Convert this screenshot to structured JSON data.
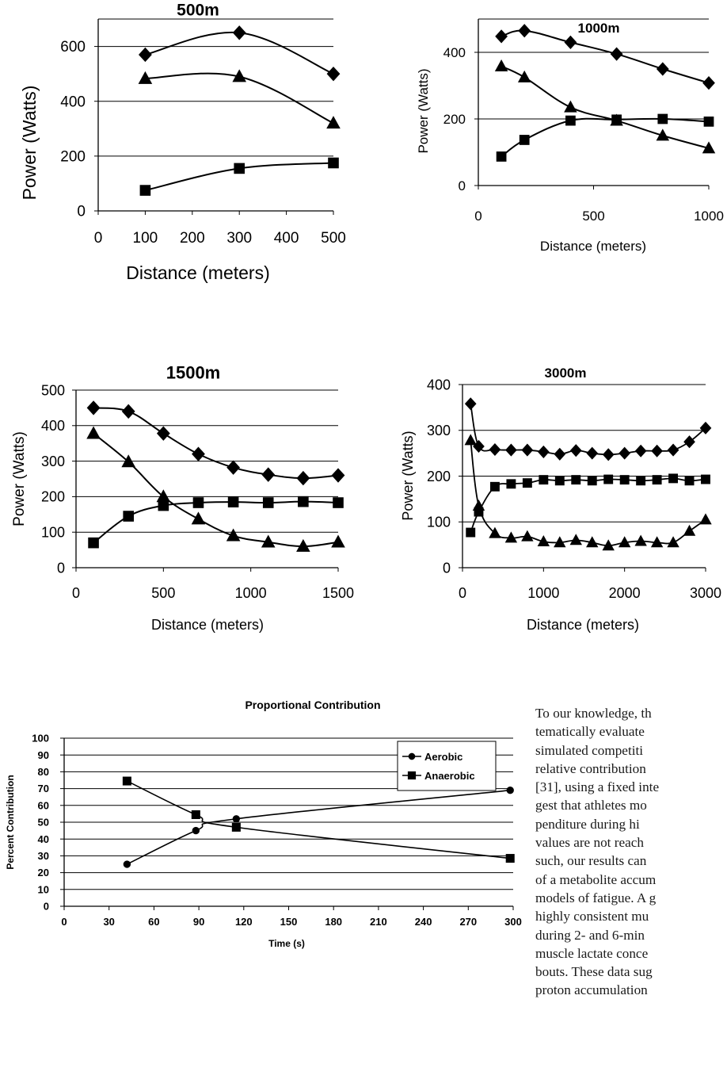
{
  "chart_data": [
    {
      "type": "line",
      "title": "500m",
      "xlabel": "Distance (meters)",
      "ylabel": "Power (Watts)",
      "xlim": [
        0,
        500
      ],
      "ylim": [
        0,
        700
      ],
      "xticks": [
        0,
        100,
        200,
        300,
        400,
        500
      ],
      "yticks": [
        0,
        200,
        400,
        600
      ],
      "grid": "horizontal",
      "series": [
        {
          "marker": "diamond",
          "x": [
            100,
            300,
            500
          ],
          "values": [
            570,
            650,
            500
          ]
        },
        {
          "marker": "triangle",
          "x": [
            100,
            300,
            500
          ],
          "values": [
            483,
            490,
            320
          ]
        },
        {
          "marker": "square",
          "x": [
            100,
            300,
            500
          ],
          "values": [
            75,
            155,
            175
          ]
        }
      ]
    },
    {
      "type": "line",
      "title": "1000m",
      "xlabel": "Distance (meters)",
      "ylabel": "Power (Watts)",
      "xlim": [
        0,
        1000
      ],
      "ylim": [
        0,
        500
      ],
      "xticks": [
        0,
        500,
        1000
      ],
      "yticks": [
        0,
        200,
        400
      ],
      "grid": "horizontal",
      "series": [
        {
          "marker": "diamond",
          "x": [
            100,
            200,
            400,
            600,
            800,
            1000
          ],
          "values": [
            448,
            465,
            430,
            395,
            350,
            308
          ]
        },
        {
          "marker": "triangle",
          "x": [
            100,
            200,
            400,
            600,
            800,
            1000
          ],
          "values": [
            358,
            325,
            235,
            195,
            150,
            112
          ]
        },
        {
          "marker": "square",
          "x": [
            100,
            200,
            400,
            600,
            800,
            1000
          ],
          "values": [
            87,
            137,
            195,
            198,
            200,
            192
          ]
        }
      ]
    },
    {
      "type": "line",
      "title": "1500m",
      "xlabel": "Distance (meters)",
      "ylabel": "Power (Watts)",
      "xlim": [
        0,
        1500
      ],
      "ylim": [
        0,
        500
      ],
      "xticks": [
        0,
        500,
        1000,
        1500
      ],
      "yticks": [
        0,
        100,
        200,
        300,
        400,
        500
      ],
      "grid": "horizontal",
      "series": [
        {
          "marker": "diamond",
          "x": [
            100,
            300,
            500,
            700,
            900,
            1100,
            1300,
            1500
          ],
          "values": [
            450,
            440,
            378,
            320,
            282,
            262,
            252,
            260
          ]
        },
        {
          "marker": "triangle",
          "x": [
            100,
            300,
            500,
            700,
            900,
            1100,
            1300,
            1500
          ],
          "values": [
            378,
            298,
            200,
            137,
            90,
            72,
            60,
            72
          ]
        },
        {
          "marker": "square",
          "x": [
            100,
            300,
            500,
            700,
            900,
            1100,
            1300,
            1500
          ],
          "values": [
            70,
            145,
            175,
            183,
            185,
            183,
            186,
            183
          ]
        }
      ]
    },
    {
      "type": "line",
      "title": "3000m",
      "xlabel": "Distance (meters)",
      "ylabel": "Power (Watts)",
      "xlim": [
        0,
        3000
      ],
      "ylim": [
        0,
        400
      ],
      "xticks": [
        0,
        1000,
        2000,
        3000
      ],
      "yticks": [
        0,
        100,
        200,
        300,
        400
      ],
      "grid": "horizontal",
      "series": [
        {
          "marker": "diamond",
          "x": [
            100,
            200,
            400,
            600,
            800,
            1000,
            1200,
            1400,
            1600,
            1800,
            2000,
            2200,
            2400,
            2600,
            2800,
            3000
          ],
          "values": [
            358,
            265,
            258,
            257,
            257,
            253,
            248,
            256,
            250,
            247,
            250,
            255,
            255,
            257,
            275,
            305
          ]
        },
        {
          "marker": "triangle",
          "x": [
            100,
            200,
            400,
            600,
            800,
            1000,
            1200,
            1400,
            1600,
            1800,
            2000,
            2200,
            2400,
            2600,
            2800,
            3000
          ],
          "values": [
            278,
            135,
            75,
            65,
            68,
            57,
            55,
            60,
            55,
            48,
            55,
            58,
            55,
            55,
            80,
            105
          ]
        },
        {
          "marker": "square",
          "x": [
            100,
            200,
            400,
            600,
            800,
            1000,
            1200,
            1400,
            1600,
            1800,
            2000,
            2200,
            2400,
            2600,
            2800,
            3000
          ],
          "values": [
            77,
            122,
            177,
            183,
            185,
            192,
            190,
            192,
            190,
            193,
            192,
            190,
            192,
            195,
            190,
            193
          ]
        }
      ]
    },
    {
      "type": "line",
      "title": "Proportional Contribution",
      "xlabel": "Time (s)",
      "ylabel": "Percent Contribution",
      "xlim": [
        0,
        300
      ],
      "ylim": [
        0,
        100
      ],
      "xticks": [
        0,
        30,
        60,
        90,
        120,
        150,
        180,
        210,
        240,
        270,
        300
      ],
      "yticks": [
        0,
        10,
        20,
        30,
        40,
        50,
        60,
        70,
        80,
        90,
        100
      ],
      "grid": "horizontal",
      "legend": "top-right",
      "series": [
        {
          "name": "Aerobic",
          "marker": "circle",
          "x": [
            42,
            88,
            115,
            298
          ],
          "values": [
            25,
            45,
            52,
            69
          ]
        },
        {
          "name": "Anaerobic",
          "marker": "square",
          "x": [
            42,
            88,
            115,
            298
          ],
          "values": [
            74.5,
            54.5,
            47,
            28.5
          ]
        }
      ]
    }
  ],
  "text_block": {
    "lines": [
      "To our knowledge, th",
      "tematically evaluate",
      "simulated competiti",
      "relative contribution",
      "[31], using a fixed inte",
      "gest that athletes mo",
      "penditure during hi",
      "values are not reach",
      "such, our results can",
      "of a metabolite accum",
      "models of fatigue. A g",
      "highly consistent mu",
      "during 2- and 6-min",
      "muscle lactate conce",
      "bouts. These data sug",
      "proton accumulation"
    ]
  },
  "colors": {
    "line": "#000000",
    "grid": "#000000",
    "background": "#ffffff"
  }
}
